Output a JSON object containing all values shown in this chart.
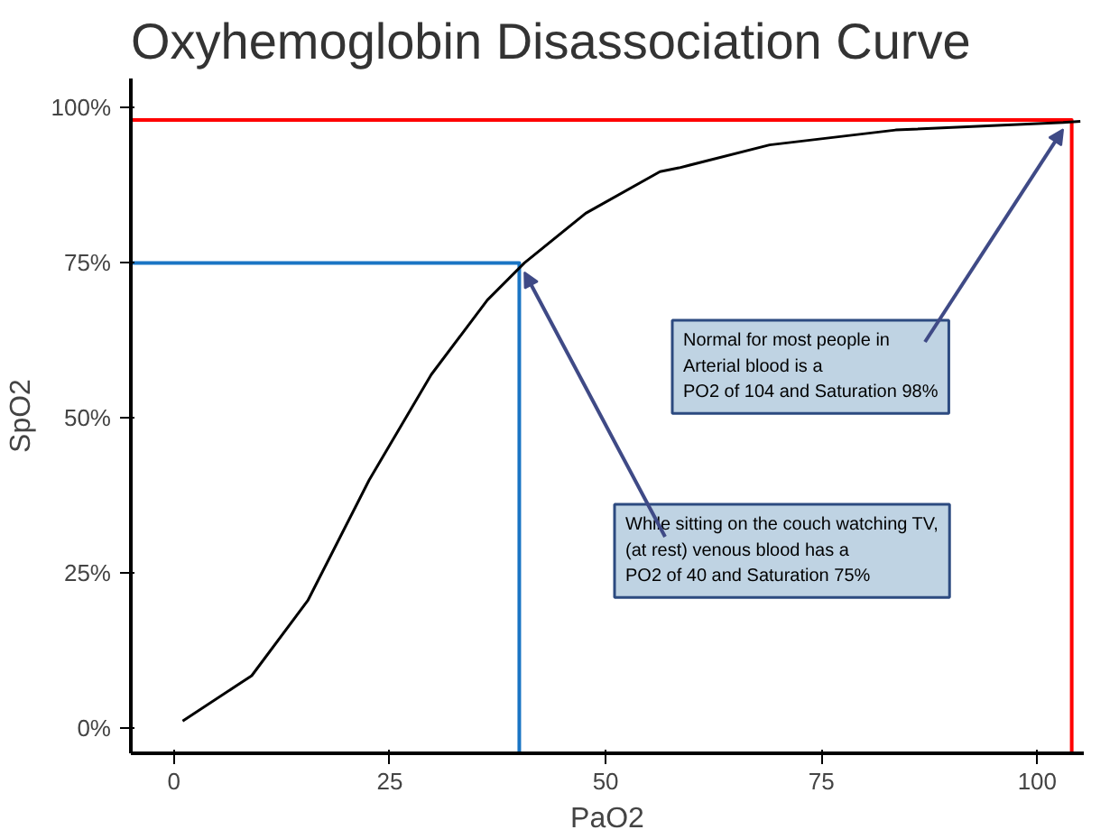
{
  "chart_data": {
    "type": "line",
    "title": "Oxyhemoglobin Disassociation Curve",
    "xlabel": "PaO2",
    "ylabel": "SpO2",
    "xlim": [
      -5,
      105.4
    ],
    "ylim": [
      -4,
      104.7
    ],
    "xticks": [
      0,
      25,
      50,
      75,
      100
    ],
    "yticks": [
      {
        "value": 0,
        "label": "0%"
      },
      {
        "value": 25,
        "label": "25%"
      },
      {
        "value": 50,
        "label": "50%"
      },
      {
        "value": 75,
        "label": "75%"
      },
      {
        "value": 100,
        "label": "100%"
      }
    ],
    "grid": false,
    "line_style": "solid",
    "marker": "none",
    "series": [
      {
        "color": "#1a75c4",
        "x": [
          -5,
          40,
          40
        ],
        "values": [
          75,
          75,
          -4
        ]
      },
      {
        "color": "#ff0000",
        "x": [
          -5,
          104,
          104
        ],
        "values": [
          98,
          98,
          -4
        ]
      },
      {
        "color": "#000000",
        "x": [
          1,
          9,
          15.5,
          22.6,
          29.8,
          36.3,
          40.6,
          47.7,
          56.3,
          58.5,
          69,
          83.6,
          103,
          105
        ],
        "values": [
          1.2,
          8.5,
          20.6,
          40,
          57,
          69,
          75,
          83,
          89.7,
          90.3,
          94,
          96.4,
          97.6,
          97.8
        ]
      }
    ],
    "annotations": [
      {
        "text": "Normal for most people in\nArterial blood is a\nPO2 of 104 and Saturation 98%",
        "x": 104,
        "y": 98
      },
      {
        "text": "While sitting on the couch watching TV,\n(at rest) venous blood has a\nPO2 of 40 and Saturation 75%",
        "x": 40,
        "y": 75
      }
    ]
  }
}
